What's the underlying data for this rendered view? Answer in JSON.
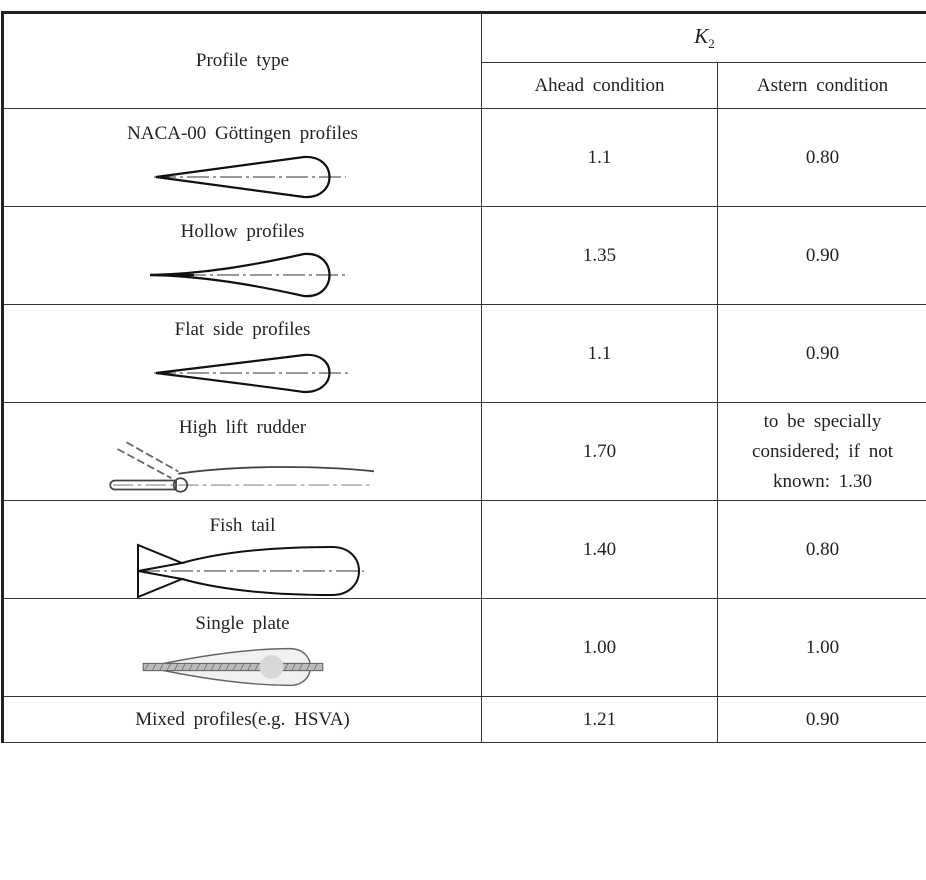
{
  "header": {
    "profile_type": "Profile type",
    "k2_symbol": "K",
    "k2_subscript": "2",
    "ahead": "Ahead condition",
    "astern": "Astern condition"
  },
  "rows": [
    {
      "profile": "NACA-00 Göttingen profiles",
      "icon": "symmetric-foil-icon",
      "ahead": "1.1",
      "astern": "0.80"
    },
    {
      "profile": "Hollow profiles",
      "icon": "hollow-foil-icon",
      "ahead": "1.35",
      "astern": "0.90"
    },
    {
      "profile": "Flat side profiles",
      "icon": "flat-side-foil-icon",
      "ahead": "1.1",
      "astern": "0.90"
    },
    {
      "profile": "High lift rudder",
      "icon": "flap-rudder-icon",
      "ahead": "1.70",
      "astern_lines": [
        "to be specially",
        "considered; if not",
        "known: 1.30"
      ]
    },
    {
      "profile": "Fish tail",
      "icon": "fish-tail-foil-icon",
      "ahead": "1.40",
      "astern": "0.80"
    },
    {
      "profile": "Single plate",
      "icon": "single-plate-icon",
      "ahead": "1.00",
      "astern": "1.00"
    },
    {
      "profile": "Mixed profiles(e.g. HSVA)",
      "ahead": "1.21",
      "astern": "0.90"
    }
  ]
}
